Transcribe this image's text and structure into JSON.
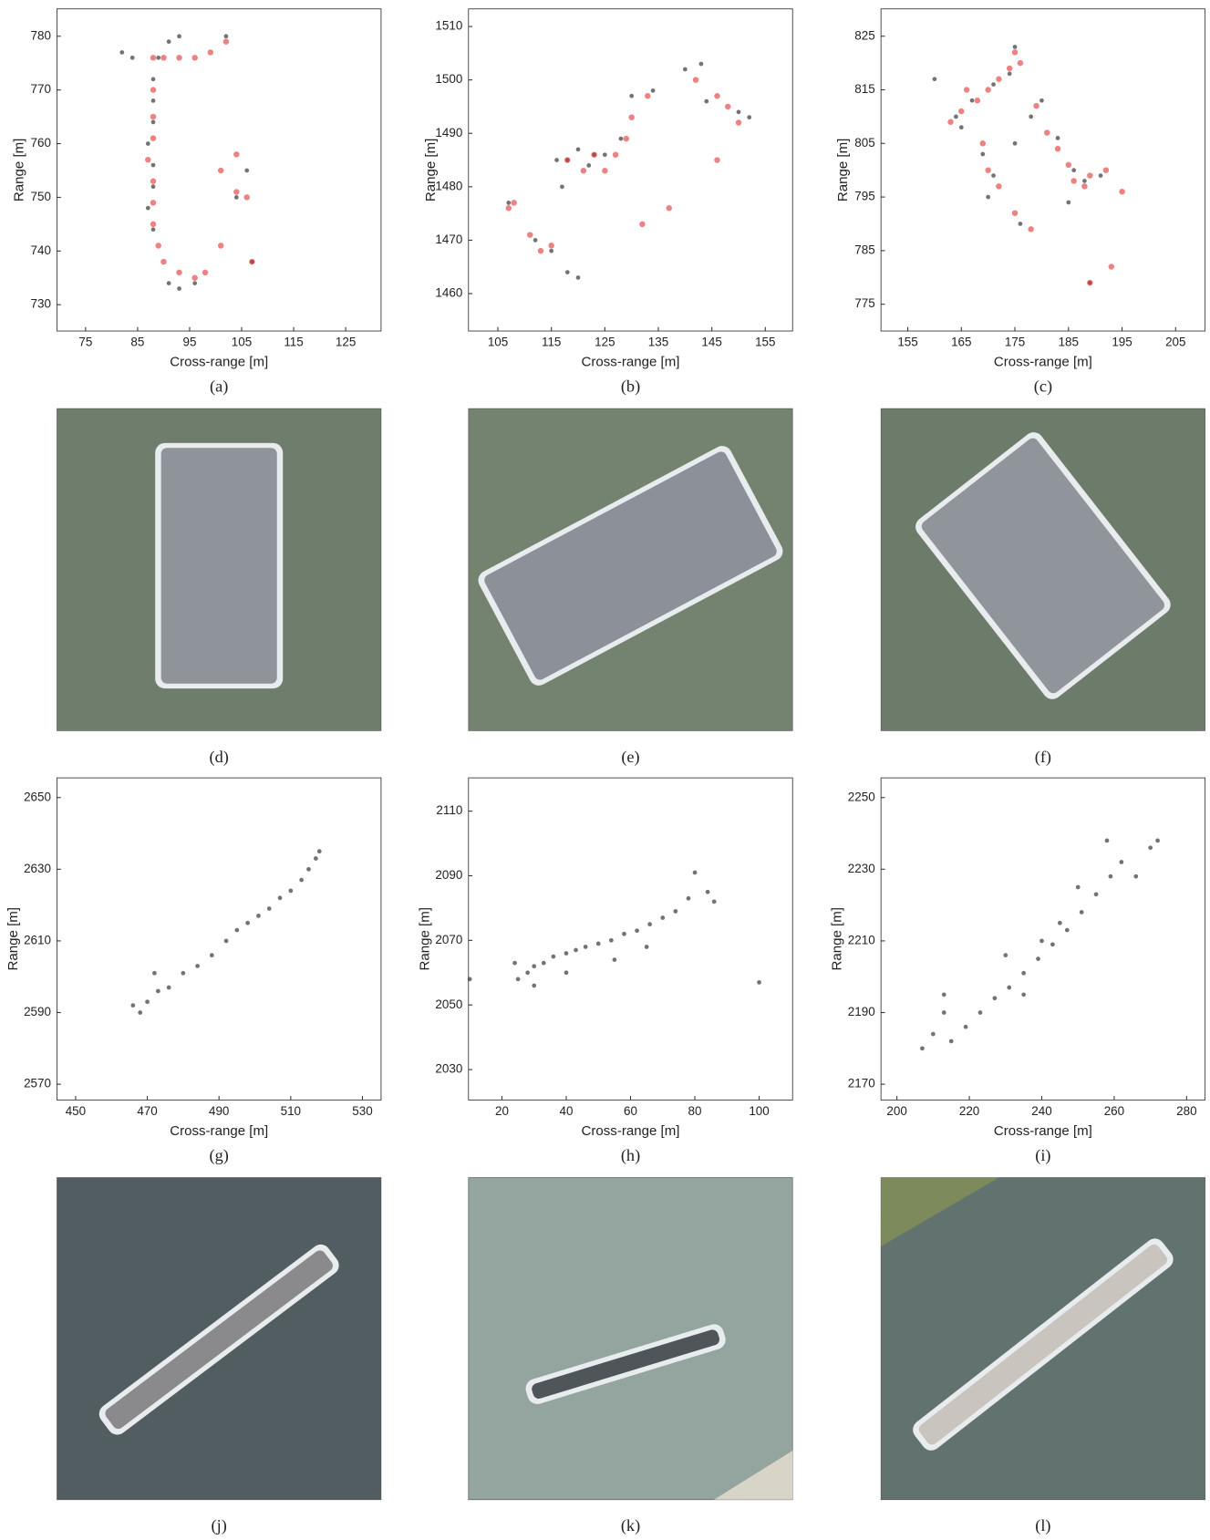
{
  "chart_data": [
    {
      "type": "scatter",
      "caption": "(a)",
      "xlabel": "Cross-range [m]",
      "ylabel": "Range [m]",
      "xlim": [
        69.5,
        131.8
      ],
      "ylim": [
        725.1,
        785.1
      ],
      "xticks": [
        75,
        85,
        95,
        105,
        115,
        125
      ],
      "yticks": [
        730,
        740,
        750,
        760,
        770,
        780
      ],
      "series": [
        {
          "color": "#000000",
          "x": [
            89,
            88,
            88,
            88,
            87,
            88,
            88,
            87,
            88,
            91,
            93,
            96,
            104,
            106,
            107,
            82,
            84,
            93,
            102,
            91
          ],
          "y": [
            776,
            772,
            768,
            764,
            760,
            756,
            752,
            748,
            744,
            734,
            733,
            734,
            750,
            755,
            738,
            777,
            776,
            780,
            780,
            779
          ]
        },
        {
          "color": "#e0302e",
          "x": [
            88,
            90,
            93,
            96,
            99,
            102,
            88,
            88,
            88,
            87,
            88,
            88,
            88,
            89,
            90,
            93,
            96,
            98,
            101,
            101,
            104,
            106,
            104,
            107
          ],
          "y": [
            776,
            776,
            776,
            776,
            777,
            779,
            770,
            765,
            761,
            757,
            753,
            749,
            745,
            741,
            738,
            736,
            735,
            736,
            741,
            755,
            751,
            750,
            758,
            738
          ]
        }
      ]
    },
    {
      "type": "scatter",
      "caption": "(b)",
      "xlabel": "Cross-range [m]",
      "ylabel": "Range [m]",
      "xlim": [
        99.5,
        160.1
      ],
      "ylim": [
        1453,
        1513.3
      ],
      "xticks": [
        105,
        115,
        125,
        135,
        145,
        155
      ],
      "yticks": [
        1460,
        1470,
        1480,
        1490,
        1500,
        1510
      ],
      "series": [
        {
          "color": "#000000",
          "x": [
            118,
            123,
            116,
            125,
            120,
            122,
            112,
            115,
            107,
            118,
            120,
            140,
            143,
            150,
            152,
            130,
            128,
            134,
            144,
            117
          ],
          "y": [
            1485,
            1486,
            1485,
            1486,
            1487,
            1484,
            1470,
            1468,
            1477,
            1464,
            1463,
            1502,
            1503,
            1494,
            1493,
            1497,
            1489,
            1498,
            1496,
            1480
          ]
        },
        {
          "color": "#e0302e",
          "x": [
            118,
            123,
            121,
            125,
            127,
            129,
            130,
            133,
            108,
            107,
            111,
            115,
            113,
            146,
            148,
            150,
            146,
            142,
            137,
            132
          ],
          "y": [
            1485,
            1486,
            1483,
            1483,
            1486,
            1489,
            1493,
            1497,
            1477,
            1476,
            1471,
            1469,
            1468,
            1497,
            1495,
            1492,
            1485,
            1500,
            1476,
            1473
          ]
        }
      ]
    },
    {
      "type": "scatter",
      "caption": "(c)",
      "xlabel": "Cross-range [m]",
      "ylabel": "Range [m]",
      "xlim": [
        150,
        210.5
      ],
      "ylim": [
        770,
        830.1
      ],
      "xticks": [
        155,
        165,
        175,
        185,
        195,
        205
      ],
      "yticks": [
        775,
        785,
        795,
        805,
        815,
        825
      ],
      "series": [
        {
          "color": "#000000",
          "x": [
            164,
            167,
            171,
            174,
            175,
            169,
            171,
            176,
            180,
            183,
            186,
            188,
            191,
            189,
            165,
            160,
            170,
            175,
            185,
            178
          ],
          "y": [
            810,
            813,
            816,
            818,
            823,
            803,
            799,
            790,
            813,
            806,
            800,
            798,
            799,
            779,
            808,
            817,
            795,
            805,
            794,
            810
          ]
        },
        {
          "color": "#e0302e",
          "x": [
            163,
            165,
            166,
            168,
            170,
            172,
            174,
            175,
            176,
            169,
            170,
            172,
            175,
            178,
            179,
            181,
            183,
            185,
            186,
            188,
            189,
            192,
            195,
            189,
            193
          ],
          "y": [
            809,
            811,
            815,
            813,
            815,
            817,
            819,
            822,
            820,
            805,
            800,
            797,
            792,
            789,
            812,
            807,
            804,
            801,
            798,
            797,
            799,
            800,
            796,
            779,
            782
          ]
        }
      ]
    },
    {
      "type": "scatter",
      "caption": "(g)",
      "xlabel": "Cross-range [m]",
      "ylabel": "Range [m]",
      "xlim": [
        444.8,
        535.2
      ],
      "ylim": [
        2565.6,
        2655.5
      ],
      "xticks": [
        450,
        470,
        490,
        510,
        530
      ],
      "yticks": [
        2570,
        2590,
        2610,
        2630,
        2650
      ],
      "series": [
        {
          "color": "#000000",
          "x": [
            473,
            470,
            476,
            480,
            484,
            488,
            492,
            495,
            498,
            501,
            504,
            507,
            510,
            513,
            515,
            517,
            518,
            468,
            466,
            472
          ],
          "y": [
            2596,
            2593,
            2597,
            2601,
            2603,
            2606,
            2610,
            2613,
            2615,
            2617,
            2619,
            2622,
            2624,
            2627,
            2630,
            2633,
            2635,
            2590,
            2592,
            2601
          ]
        }
      ]
    },
    {
      "type": "scatter",
      "caption": "(h)",
      "xlabel": "Cross-range [m]",
      "ylabel": "Range [m]",
      "xlim": [
        9.6,
        110.4
      ],
      "ylim": [
        2020.6,
        2120.3
      ],
      "xticks": [
        20,
        40,
        60,
        80,
        100
      ],
      "yticks": [
        2030,
        2050,
        2070,
        2090,
        2110
      ],
      "series": [
        {
          "color": "#000000",
          "x": [
            25,
            28,
            30,
            33,
            36,
            40,
            43,
            46,
            50,
            54,
            58,
            62,
            66,
            70,
            74,
            78,
            80,
            84,
            86,
            24,
            30,
            40,
            55,
            65,
            10,
            100
          ],
          "y": [
            2058,
            2060,
            2062,
            2063,
            2065,
            2066,
            2067,
            2068,
            2069,
            2070,
            2072,
            2073,
            2075,
            2077,
            2079,
            2083,
            2091,
            2085,
            2082,
            2063,
            2056,
            2060,
            2064,
            2068,
            2058,
            2057
          ]
        }
      ]
    },
    {
      "type": "scatter",
      "caption": "(i)",
      "xlabel": "Cross-range [m]",
      "ylabel": "Range [m]",
      "xlim": [
        195.6,
        285.1
      ],
      "ylim": [
        2165.6,
        2255.5
      ],
      "xticks": [
        200,
        220,
        240,
        260,
        280
      ],
      "yticks": [
        2170,
        2190,
        2210,
        2230,
        2250
      ],
      "series": [
        {
          "color": "#000000",
          "x": [
            207,
            210,
            213,
            215,
            219,
            223,
            227,
            231,
            235,
            239,
            243,
            247,
            251,
            255,
            259,
            262,
            266,
            270,
            272,
            213,
            230,
            240,
            245,
            250,
            258,
            235
          ],
          "y": [
            2180,
            2184,
            2190,
            2182,
            2186,
            2190,
            2194,
            2197,
            2201,
            2205,
            2209,
            2213,
            2218,
            2223,
            2228,
            2232,
            2228,
            2236,
            2238,
            2195,
            2206,
            2210,
            2215,
            2225,
            2238,
            2195
          ]
        }
      ]
    }
  ],
  "photos": [
    {
      "caption": "(d)"
    },
    {
      "caption": "(e)"
    },
    {
      "caption": "(f)"
    },
    {
      "caption": "(j)"
    },
    {
      "caption": "(k)"
    },
    {
      "caption": "(l)"
    }
  ]
}
